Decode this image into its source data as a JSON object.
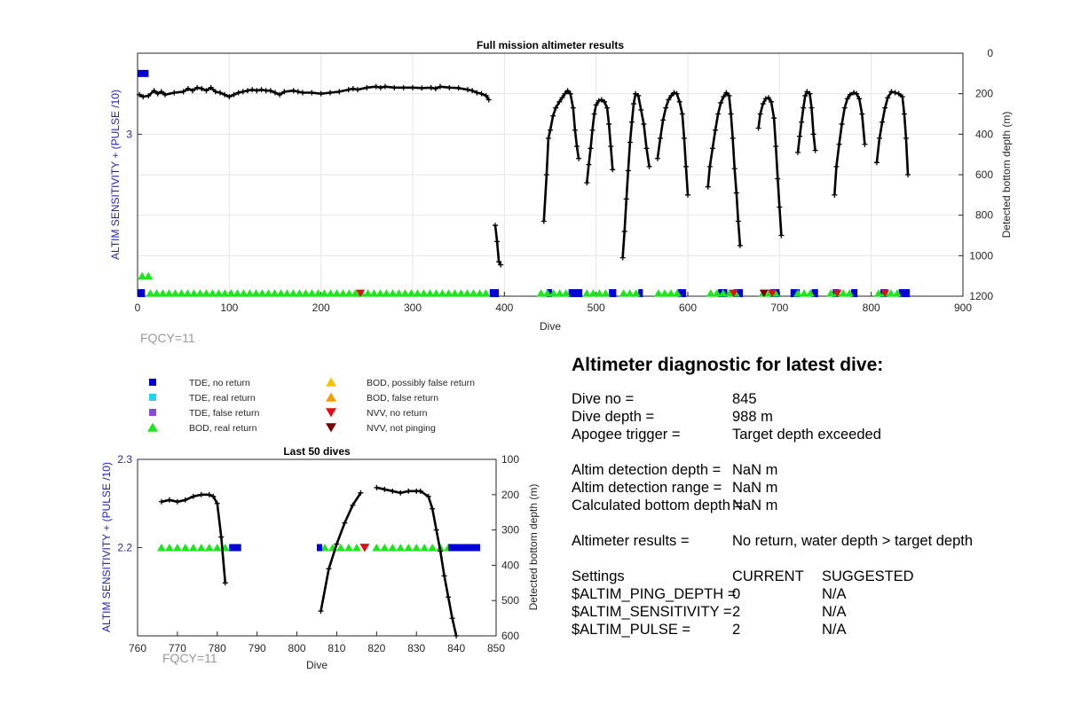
{
  "chart_data": [
    {
      "type": "line",
      "title": "Full mission altimeter results",
      "xlabel": "Dive",
      "ylabel_left": "ALTIM SENSITIVITY + (PULSE /10)",
      "ylabel_right": "Detected bottom depth (m)",
      "xlim": [
        0,
        900
      ],
      "xticks": [
        0,
        100,
        200,
        300,
        400,
        500,
        600,
        700,
        800,
        900
      ],
      "ylim_right": [
        0,
        1200
      ],
      "yticks_right": [
        0,
        200,
        400,
        600,
        800,
        1000,
        1200
      ],
      "yticks_left": [
        "3"
      ],
      "grid": true,
      "annotation": "FQCY=11",
      "bottom_depth_segments": [
        [
          [
            2,
            205
          ],
          [
            6,
            215
          ],
          [
            12,
            210
          ],
          [
            18,
            185
          ],
          [
            22,
            200
          ],
          [
            26,
            190
          ],
          [
            30,
            205
          ],
          [
            40,
            195
          ],
          [
            50,
            190
          ],
          [
            55,
            175
          ],
          [
            60,
            185
          ],
          [
            65,
            170
          ],
          [
            70,
            175
          ],
          [
            75,
            185
          ],
          [
            80,
            170
          ],
          [
            85,
            190
          ],
          [
            90,
            195
          ],
          [
            95,
            205
          ],
          [
            100,
            215
          ],
          [
            105,
            205
          ],
          [
            110,
            195
          ],
          [
            115,
            190
          ],
          [
            120,
            185
          ],
          [
            125,
            180
          ],
          [
            130,
            185
          ],
          [
            135,
            180
          ],
          [
            140,
            185
          ],
          [
            145,
            185
          ],
          [
            150,
            195
          ],
          [
            155,
            205
          ],
          [
            160,
            190
          ],
          [
            170,
            185
          ],
          [
            175,
            190
          ],
          [
            180,
            195
          ],
          [
            190,
            195
          ],
          [
            200,
            200
          ],
          [
            210,
            195
          ],
          [
            220,
            190
          ],
          [
            230,
            180
          ],
          [
            235,
            175
          ],
          [
            240,
            180
          ],
          [
            250,
            170
          ],
          [
            260,
            165
          ],
          [
            265,
            170
          ],
          [
            270,
            165
          ],
          [
            280,
            170
          ],
          [
            290,
            170
          ],
          [
            300,
            170
          ],
          [
            310,
            172
          ],
          [
            320,
            170
          ],
          [
            325,
            175
          ],
          [
            330,
            165
          ],
          [
            340,
            170
          ],
          [
            350,
            172
          ],
          [
            360,
            180
          ],
          [
            365,
            185
          ],
          [
            370,
            195
          ],
          [
            375,
            200
          ],
          [
            380,
            210
          ],
          [
            383,
            230
          ]
        ],
        [
          [
            390,
            850
          ],
          [
            392,
            930
          ],
          [
            394,
            1030
          ],
          [
            396,
            1045
          ]
        ],
        [
          [
            443,
            830
          ],
          [
            446,
            600
          ],
          [
            448,
            420
          ],
          [
            450,
            380
          ],
          [
            453,
            310
          ],
          [
            456,
            270
          ],
          [
            460,
            240
          ],
          [
            463,
            220
          ],
          [
            466,
            200
          ],
          [
            469,
            185
          ],
          [
            472,
            200
          ],
          [
            475,
            270
          ],
          [
            477,
            380
          ],
          [
            479,
            460
          ],
          [
            481,
            520
          ]
        ],
        [
          [
            490,
            640
          ],
          [
            492,
            550
          ],
          [
            494,
            470
          ],
          [
            496,
            380
          ],
          [
            498,
            300
          ],
          [
            500,
            255
          ],
          [
            503,
            235
          ],
          [
            506,
            230
          ],
          [
            509,
            240
          ],
          [
            512,
            270
          ],
          [
            514,
            350
          ],
          [
            516,
            460
          ],
          [
            518,
            575
          ]
        ],
        [
          [
            529,
            1010
          ],
          [
            531,
            880
          ],
          [
            533,
            720
          ],
          [
            535,
            580
          ],
          [
            537,
            440
          ],
          [
            539,
            340
          ],
          [
            541,
            250
          ],
          [
            543,
            200
          ],
          [
            546,
            210
          ],
          [
            549,
            280
          ],
          [
            552,
            350
          ],
          [
            555,
            470
          ],
          [
            558,
            560
          ]
        ],
        [
          [
            567,
            520
          ],
          [
            570,
            420
          ],
          [
            573,
            330
          ],
          [
            576,
            270
          ],
          [
            579,
            230
          ],
          [
            582,
            210
          ],
          [
            585,
            195
          ],
          [
            588,
            200
          ],
          [
            591,
            240
          ],
          [
            594,
            300
          ],
          [
            596,
            420
          ],
          [
            598,
            560
          ],
          [
            600,
            700
          ]
        ],
        [
          [
            622,
            660
          ],
          [
            624,
            560
          ],
          [
            627,
            470
          ],
          [
            630,
            380
          ],
          [
            633,
            300
          ],
          [
            636,
            245
          ],
          [
            639,
            215
          ],
          [
            642,
            195
          ],
          [
            645,
            210
          ],
          [
            647,
            300
          ],
          [
            649,
            420
          ],
          [
            651,
            570
          ],
          [
            653,
            690
          ],
          [
            655,
            830
          ],
          [
            657,
            950
          ]
        ],
        [
          [
            677,
            370
          ],
          [
            679,
            300
          ],
          [
            682,
            250
          ],
          [
            685,
            225
          ],
          [
            688,
            220
          ],
          [
            691,
            240
          ],
          [
            694,
            320
          ],
          [
            696,
            460
          ],
          [
            698,
            620
          ],
          [
            700,
            760
          ],
          [
            702,
            900
          ]
        ],
        [
          [
            720,
            490
          ],
          [
            722,
            410
          ],
          [
            724,
            340
          ],
          [
            726,
            270
          ],
          [
            728,
            210
          ],
          [
            730,
            190
          ],
          [
            733,
            200
          ],
          [
            735,
            270
          ],
          [
            737,
            400
          ],
          [
            739,
            480
          ]
        ],
        [
          [
            760,
            700
          ],
          [
            762,
            560
          ],
          [
            765,
            450
          ],
          [
            768,
            350
          ],
          [
            771,
            270
          ],
          [
            774,
            225
          ],
          [
            777,
            205
          ],
          [
            781,
            195
          ],
          [
            784,
            200
          ],
          [
            787,
            225
          ],
          [
            790,
            300
          ],
          [
            793,
            450
          ]
        ],
        [
          [
            806,
            540
          ],
          [
            809,
            420
          ],
          [
            812,
            340
          ],
          [
            815,
            270
          ],
          [
            818,
            220
          ],
          [
            822,
            190
          ],
          [
            826,
            195
          ],
          [
            830,
            200
          ],
          [
            834,
            215
          ],
          [
            836,
            300
          ],
          [
            838,
            420
          ],
          [
            840,
            600
          ]
        ]
      ],
      "markers": [
        {
          "type": "TDE, no return",
          "x_ranges": [
            [
              0,
              8
            ],
            [
              384,
              394
            ],
            [
              446,
              452
            ],
            [
              470,
              485
            ],
            [
              514,
              522
            ],
            [
              546,
              551
            ],
            [
              589,
              598
            ],
            [
              633,
              643
            ],
            [
              650,
              660
            ],
            [
              690,
              700
            ],
            [
              712,
              722
            ],
            [
              735,
              742
            ],
            [
              758,
              765
            ],
            [
              778,
              785
            ],
            [
              810,
              818
            ],
            [
              830,
              842
            ]
          ]
        },
        {
          "type": "BOD, real return",
          "x_ranges": [
            [
              5,
              18
            ],
            [
              14,
              380
            ],
            [
              440,
              470
            ],
            [
              490,
              512
            ],
            [
              530,
              545
            ],
            [
              568,
              592
            ],
            [
              625,
              655
            ],
            [
              682,
              700
            ],
            [
              720,
              740
            ],
            [
              756,
              780
            ],
            [
              808,
              830
            ]
          ]
        },
        {
          "type": "NVV, no return",
          "x": [
            243,
            650,
            692,
            763,
            815
          ]
        },
        {
          "type": "NVV, not pinging",
          "x": [
            683
          ]
        }
      ]
    },
    {
      "type": "line",
      "title": "Last 50 dives",
      "xlabel": "Dive",
      "ylabel_left": "ALTIM SENSITIVITY + (PULSE /10)",
      "ylabel_right": "Detected bottom depth (m)",
      "xlim": [
        760,
        850
      ],
      "xticks": [
        760,
        770,
        780,
        790,
        800,
        810,
        820,
        830,
        840,
        850
      ],
      "ylim_left": [
        2.1,
        2.3
      ],
      "yticks_left": [
        2.2,
        2.3
      ],
      "ylim_right": [
        100,
        600
      ],
      "yticks_right": [
        100,
        200,
        300,
        400,
        500,
        600
      ],
      "annotation": "FQCY=11",
      "bottom_depth_segments": [
        [
          [
            766,
            220
          ],
          [
            768,
            215
          ],
          [
            770,
            220
          ],
          [
            772,
            215
          ],
          [
            774,
            205
          ],
          [
            776,
            200
          ],
          [
            778,
            200
          ],
          [
            779,
            205
          ],
          [
            780,
            225
          ],
          [
            781,
            320
          ],
          [
            782,
            450
          ]
        ],
        [
          [
            806,
            530
          ],
          [
            808,
            410
          ],
          [
            810,
            340
          ],
          [
            812,
            280
          ],
          [
            814,
            230
          ],
          [
            816,
            195
          ]
        ],
        [
          [
            820,
            180
          ],
          [
            822,
            185
          ],
          [
            824,
            190
          ],
          [
            826,
            195
          ],
          [
            828,
            190
          ],
          [
            830,
            190
          ],
          [
            831,
            190
          ],
          [
            833,
            205
          ],
          [
            834,
            240
          ],
          [
            835,
            300
          ],
          [
            836,
            360
          ],
          [
            837,
            430
          ],
          [
            838,
            490
          ],
          [
            839,
            550
          ],
          [
            840,
            600
          ]
        ]
      ],
      "markers": [
        {
          "type": "BOD, real return",
          "x": [
            766,
            768,
            770,
            772,
            774,
            776,
            778,
            780,
            782,
            807,
            809,
            811,
            813,
            815,
            820,
            822,
            824,
            826,
            828,
            830,
            832,
            834,
            836,
            838
          ]
        },
        {
          "type": "TDE, no return",
          "x_ranges": [
            [
              783,
              786
            ],
            [
              805,
              806
            ],
            [
              838,
              846
            ]
          ]
        },
        {
          "type": "NVV, no return",
          "x": [
            817
          ]
        }
      ]
    }
  ],
  "legend": [
    {
      "label": "TDE, no return",
      "color": "#0000d4",
      "shape": "square"
    },
    {
      "label": "TDE, real return",
      "color": "#22d3f0",
      "shape": "square"
    },
    {
      "label": "TDE, false return",
      "color": "#8a4ad6",
      "shape": "square"
    },
    {
      "label": "BOD, real return",
      "color": "#1ee61e",
      "shape": "triangle-up"
    },
    {
      "label": "BOD, possibly false return",
      "color": "#f5c400",
      "shape": "triangle-up"
    },
    {
      "label": "BOD, false return",
      "color": "#f0a000",
      "shape": "triangle-up"
    },
    {
      "label": "NVV, no return",
      "color": "#e01010",
      "shape": "triangle-down"
    },
    {
      "label": "NVV, not pinging",
      "color": "#7a0000",
      "shape": "triangle-down"
    }
  ],
  "diagnostic": {
    "title": "Altimeter diagnostic for latest dive:",
    "rows": [
      {
        "label": "Dive no =",
        "value": "845"
      },
      {
        "label": "Dive depth =",
        "value": "988 m"
      },
      {
        "label": "Apogee trigger =",
        "value": "Target depth exceeded"
      },
      {
        "label": "Altim detection depth =",
        "value": "NaN m"
      },
      {
        "label": "Altim detection range =",
        "value": "NaN m"
      },
      {
        "label": "Calculated bottom depth =",
        "value": "NaN m"
      },
      {
        "label": "Altimeter results =",
        "value": "No return, water depth > target depth"
      }
    ],
    "settings": {
      "header": [
        "Settings",
        "CURRENT",
        "SUGGESTED"
      ],
      "rows": [
        [
          "$ALTIM_PING_DEPTH =",
          "0",
          "N/A"
        ],
        [
          "$ALTIM_SENSITIVITY =",
          "2",
          "N/A"
        ],
        [
          "$ALTIM_PULSE =",
          "2",
          "N/A"
        ]
      ]
    }
  }
}
